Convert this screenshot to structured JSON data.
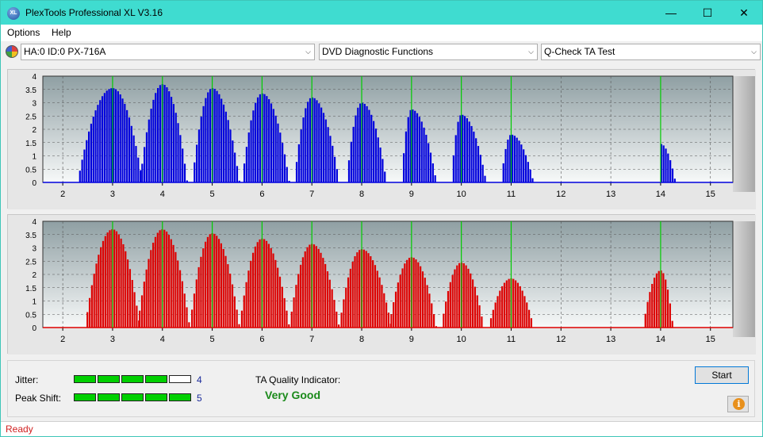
{
  "window": {
    "title": "PlexTools Professional XL V3.16",
    "icon": "XL",
    "controls": {
      "minimize": "—",
      "maximize": "☐",
      "close": "✕"
    }
  },
  "menu": {
    "items": [
      "Options",
      "Help"
    ]
  },
  "toolbar": {
    "drive": "HA:0 ID:0  PX-716A",
    "function": "DVD Diagnostic Functions",
    "test": "Q-Check TA Test",
    "drive_icon": "disc-icon"
  },
  "chart_data": [
    {
      "type": "bar",
      "name": "top",
      "color": "#0000dd",
      "peak_line_color": "#00cc00",
      "xlim": [
        1.6,
        15.45
      ],
      "ylim": [
        0,
        4
      ],
      "yticks": [
        "0",
        "0.5",
        "1",
        "1.5",
        "2",
        "2.5",
        "3",
        "3.5",
        "4"
      ],
      "xticks": [
        "2",
        "3",
        "4",
        "5",
        "6",
        "7",
        "8",
        "9",
        "10",
        "11",
        "12",
        "13",
        "14",
        "15"
      ],
      "peak_lines": [
        3,
        4,
        5,
        6,
        7,
        8,
        9,
        10,
        11,
        14
      ],
      "groups": [
        {
          "center": 3.0,
          "peak": 3.55,
          "start": 2.3,
          "end": 3.6
        },
        {
          "center": 4.0,
          "peak": 3.7,
          "start": 3.55,
          "end": 4.5
        },
        {
          "center": 5.0,
          "peak": 3.55,
          "start": 4.6,
          "end": 5.55
        },
        {
          "center": 6.0,
          "peak": 3.35,
          "start": 5.6,
          "end": 6.55
        },
        {
          "center": 7.0,
          "peak": 3.2,
          "start": 6.65,
          "end": 7.55
        },
        {
          "center": 8.0,
          "peak": 3.0,
          "start": 7.7,
          "end": 8.5
        },
        {
          "center": 9.0,
          "peak": 2.75,
          "start": 8.8,
          "end": 9.5
        },
        {
          "center": 10.0,
          "peak": 2.55,
          "start": 9.8,
          "end": 10.5
        },
        {
          "center": 11.0,
          "peak": 1.8,
          "start": 10.8,
          "end": 11.45
        },
        {
          "center": 14.0,
          "peak": 1.45,
          "start": 13.97,
          "end": 14.3
        }
      ]
    },
    {
      "type": "bar",
      "name": "bottom",
      "color": "#dd0000",
      "peak_line_color": "#00cc00",
      "xlim": [
        1.6,
        15.45
      ],
      "ylim": [
        0,
        4
      ],
      "yticks": [
        "0",
        "0.5",
        "1",
        "1.5",
        "2",
        "2.5",
        "3",
        "3.5",
        "4"
      ],
      "xticks": [
        "2",
        "3",
        "4",
        "5",
        "6",
        "7",
        "8",
        "9",
        "10",
        "11",
        "12",
        "13",
        "14",
        "15"
      ],
      "peak_lines": [
        3,
        4,
        5,
        6,
        7,
        8,
        9,
        10,
        11,
        14
      ],
      "groups": [
        {
          "center": 3.0,
          "peak": 3.7,
          "start": 2.45,
          "end": 3.55
        },
        {
          "center": 4.0,
          "peak": 3.7,
          "start": 3.5,
          "end": 4.55
        },
        {
          "center": 5.0,
          "peak": 3.55,
          "start": 4.55,
          "end": 5.55
        },
        {
          "center": 6.0,
          "peak": 3.35,
          "start": 5.55,
          "end": 6.55
        },
        {
          "center": 7.0,
          "peak": 3.15,
          "start": 6.55,
          "end": 7.55
        },
        {
          "center": 8.0,
          "peak": 2.95,
          "start": 7.55,
          "end": 8.6
        },
        {
          "center": 9.0,
          "peak": 2.65,
          "start": 8.55,
          "end": 9.5
        },
        {
          "center": 10.0,
          "peak": 2.45,
          "start": 9.6,
          "end": 10.45
        },
        {
          "center": 11.0,
          "peak": 1.85,
          "start": 10.55,
          "end": 11.45
        },
        {
          "center": 14.0,
          "peak": 2.15,
          "start": 13.65,
          "end": 14.25
        }
      ]
    }
  ],
  "status": {
    "jitter_label": "Jitter:",
    "jitter_value": "4",
    "jitter_level": 4,
    "peak_shift_label": "Peak Shift:",
    "peak_shift_value": "5",
    "peak_shift_level": 5,
    "meter_segments": 5,
    "quality_label": "TA Quality Indicator:",
    "quality_value": "Very Good",
    "start_label": "Start",
    "info_icon": "info-icon"
  },
  "statusbar": {
    "text": "Ready"
  }
}
